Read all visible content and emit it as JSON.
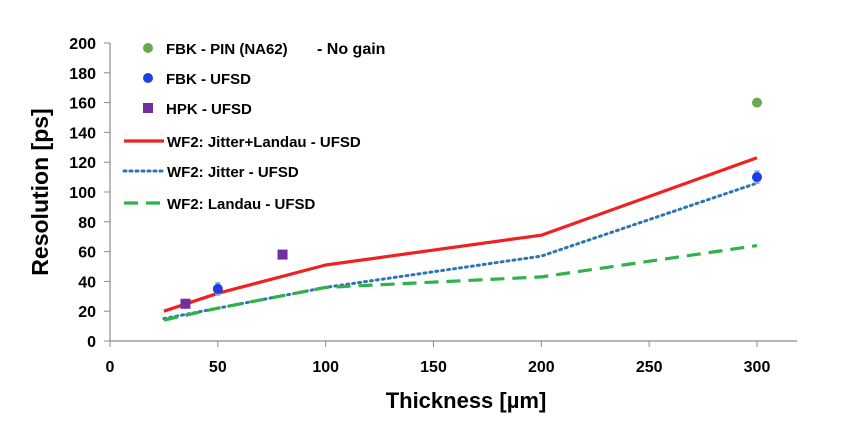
{
  "chart_data": {
    "type": "line",
    "title": "",
    "xlabel": "Thickness [µm]",
    "ylabel": "Resolution [ps]",
    "xlim": [
      0,
      300
    ],
    "ylim": [
      0,
      200
    ],
    "xticks": [
      0,
      50,
      100,
      150,
      200,
      250,
      300
    ],
    "yticks": [
      0,
      20,
      40,
      60,
      80,
      100,
      120,
      140,
      160,
      180,
      200
    ],
    "grid": false,
    "legend_position": "top-left",
    "series": [
      {
        "name": "FBK - PIN (NA62)",
        "note": "- No gain",
        "kind": "scatter",
        "marker": "circle",
        "color": "#6aa84f",
        "points": [
          {
            "x": 300,
            "y": 160
          }
        ]
      },
      {
        "name": "FBK - UFSD",
        "kind": "scatter",
        "marker": "circle",
        "color": "#1f3de0",
        "error_color": "#7fa6e8",
        "points": [
          {
            "x": 35,
            "y": 25,
            "err": 1
          },
          {
            "x": 50,
            "y": 35,
            "err": 4
          },
          {
            "x": 300,
            "y": 110,
            "err": 4
          }
        ]
      },
      {
        "name": "HPK - UFSD",
        "kind": "scatter",
        "marker": "square",
        "color": "#7030a0",
        "points": [
          {
            "x": 35,
            "y": 25
          },
          {
            "x": 80,
            "y": 58
          }
        ]
      },
      {
        "name": "WF2: Jitter+Landau - UFSD",
        "kind": "line",
        "style": "solid",
        "color": "#ee2222",
        "points": [
          {
            "x": 25,
            "y": 20
          },
          {
            "x": 50,
            "y": 32
          },
          {
            "x": 100,
            "y": 51
          },
          {
            "x": 200,
            "y": 71
          },
          {
            "x": 300,
            "y": 123
          }
        ]
      },
      {
        "name": "WF2: Jitter - UFSD",
        "kind": "line",
        "style": "dotted",
        "color": "#2e75b6",
        "points": [
          {
            "x": 25,
            "y": 15
          },
          {
            "x": 50,
            "y": 22
          },
          {
            "x": 100,
            "y": 36
          },
          {
            "x": 200,
            "y": 57
          },
          {
            "x": 300,
            "y": 106
          }
        ]
      },
      {
        "name": "WF2: Landau - UFSD",
        "kind": "line",
        "style": "dashed",
        "color": "#2db34a",
        "points": [
          {
            "x": 25,
            "y": 14
          },
          {
            "x": 50,
            "y": 22
          },
          {
            "x": 100,
            "y": 36
          },
          {
            "x": 200,
            "y": 43
          },
          {
            "x": 300,
            "y": 64
          }
        ]
      }
    ]
  }
}
